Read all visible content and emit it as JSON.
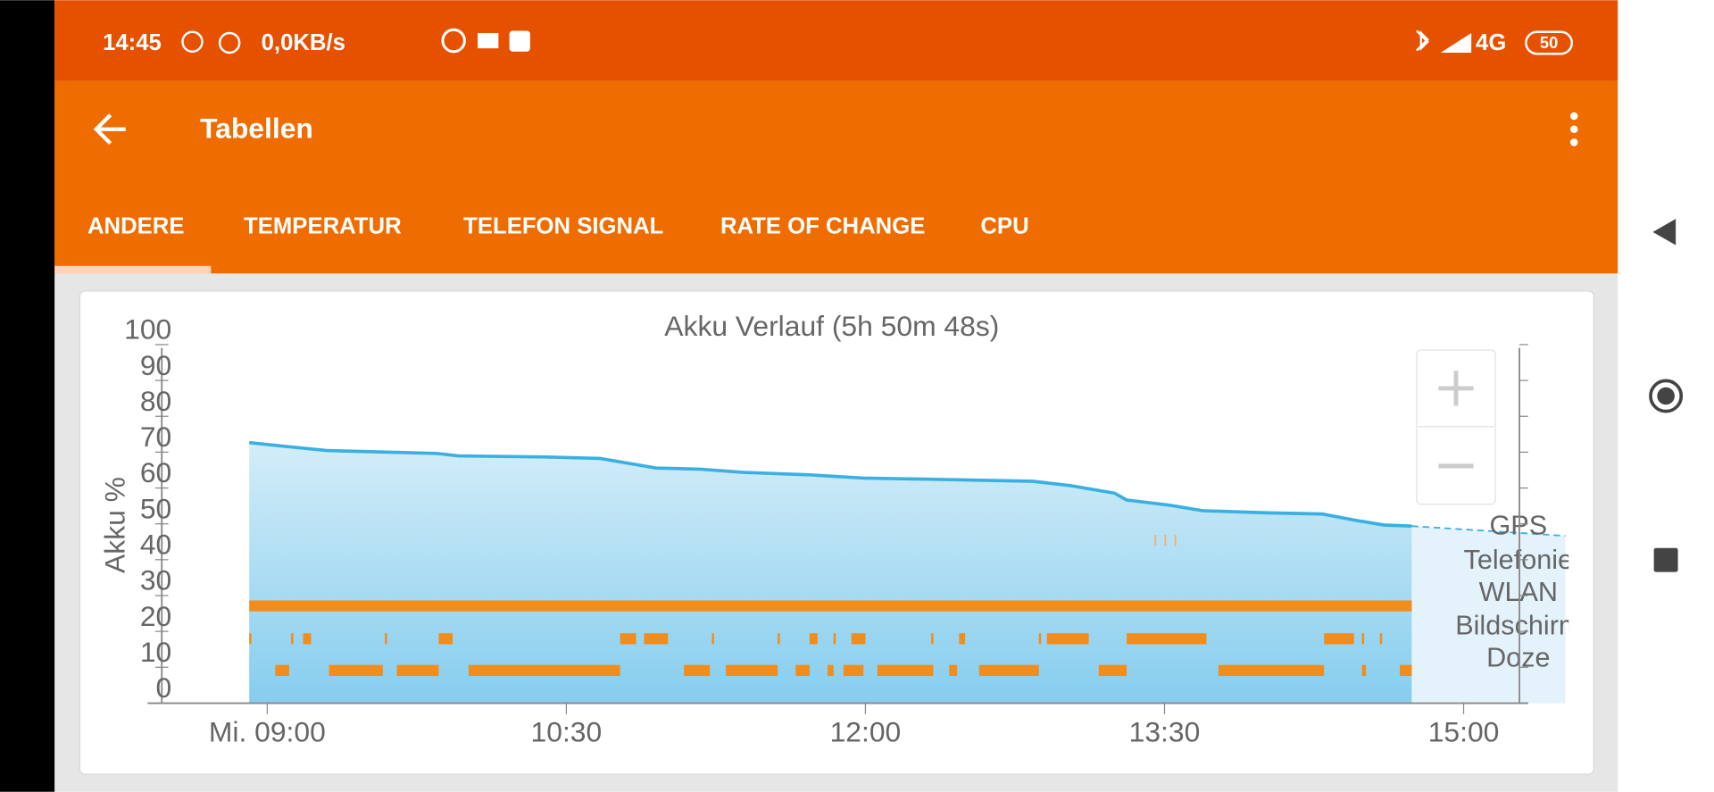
{
  "status": {
    "time": "14:45",
    "speed": "0,0KB/s",
    "network": "4G",
    "battery": "50"
  },
  "toolbar": {
    "title": "Tabellen"
  },
  "tabs": [
    "ANDERE",
    "TEMPERATUR",
    "TELEFON SIGNAL",
    "RATE OF CHANGE",
    "CPU"
  ],
  "chart_data": {
    "type": "area",
    "title": "Akku Verlauf (5h 50m 48s)",
    "y_label": "Akku %",
    "xlim": [
      8.4,
      15.51
    ],
    "xticks": [
      {
        "value": 9,
        "label": "Mi. 09:00"
      },
      {
        "value": 10.5,
        "label": "10:30"
      },
      {
        "value": 12,
        "label": "12:00"
      },
      {
        "value": 13.5,
        "label": "13:30"
      },
      {
        "value": 15,
        "label": "15:00"
      }
    ],
    "ylim": [
      -3.7,
      100
    ],
    "yticks": [
      0,
      10,
      20,
      30,
      40,
      50,
      60,
      70,
      80,
      90,
      100
    ],
    "series": [
      {
        "color": "#3ab0e2",
        "x": [
          8.91,
          9.08,
          9.3,
          9.85,
          9.96,
          10.4,
          10.67,
          10.95,
          11.17,
          11.39,
          11.72,
          11.99,
          12.32,
          12.84,
          13.03,
          13.25,
          13.31,
          13.53,
          13.69,
          14.02,
          14.29,
          14.46,
          14.6,
          14.74
        ],
        "values": [
          69,
          68,
          66.8,
          66,
          65.3,
          65,
          64.6,
          61.9,
          61.6,
          60.7,
          60,
          59.1,
          58.8,
          58.2,
          57,
          54.9,
          53,
          51.5,
          50,
          49.4,
          49.1,
          47.3,
          46,
          45.7
        ]
      },
      {
        "color": "#3ab0e2",
        "dashed": true,
        "x": [
          14.74,
          15.51
        ],
        "values": [
          45.7,
          43
        ]
      }
    ],
    "tracks": [
      {
        "name": "GPS",
        "color": "#f28c1a",
        "intervals": [
          [
            13.45,
            13.46
          ],
          [
            13.5,
            13.51
          ],
          [
            13.55,
            13.56
          ]
        ]
      },
      {
        "name": "Telefonie",
        "color": "#f28c1a",
        "intervals": []
      },
      {
        "name": "WLAN",
        "color": "#f28c1a",
        "intervals": [
          [
            8.91,
            14.74
          ]
        ]
      },
      {
        "name": "Bildschirm",
        "color": "#f28c1a",
        "intervals": [
          [
            8.91,
            8.92
          ],
          [
            9.12,
            9.13
          ],
          [
            9.18,
            9.22
          ],
          [
            9.59,
            9.6
          ],
          [
            9.86,
            9.93
          ],
          [
            10.77,
            10.85
          ],
          [
            10.89,
            11.01
          ],
          [
            11.23,
            11.24
          ],
          [
            11.56,
            11.57
          ],
          [
            11.72,
            11.76
          ],
          [
            11.84,
            11.85
          ],
          [
            11.93,
            12
          ],
          [
            12.33,
            12.34
          ],
          [
            12.47,
            12.5
          ],
          [
            12.87,
            12.88
          ],
          [
            12.91,
            13.12
          ],
          [
            13.31,
            13.71
          ],
          [
            14.3,
            14.45
          ],
          [
            14.49,
            14.5
          ],
          [
            14.58,
            14.59
          ]
        ]
      },
      {
        "name": "Doze",
        "color": "#f28c1a",
        "intervals": [
          [
            9.04,
            9.11
          ],
          [
            9.31,
            9.58
          ],
          [
            9.65,
            9.86
          ],
          [
            10.01,
            10.77
          ],
          [
            11.09,
            11.22
          ],
          [
            11.3,
            11.56
          ],
          [
            11.65,
            11.72
          ],
          [
            11.81,
            11.84
          ],
          [
            11.89,
            11.99
          ],
          [
            12.06,
            12.34
          ],
          [
            12.42,
            12.46
          ],
          [
            12.57,
            12.87
          ],
          [
            13.17,
            13.31
          ],
          [
            13.77,
            14.3
          ],
          [
            14.49,
            14.51
          ],
          [
            14.68,
            14.74
          ]
        ]
      }
    ]
  }
}
